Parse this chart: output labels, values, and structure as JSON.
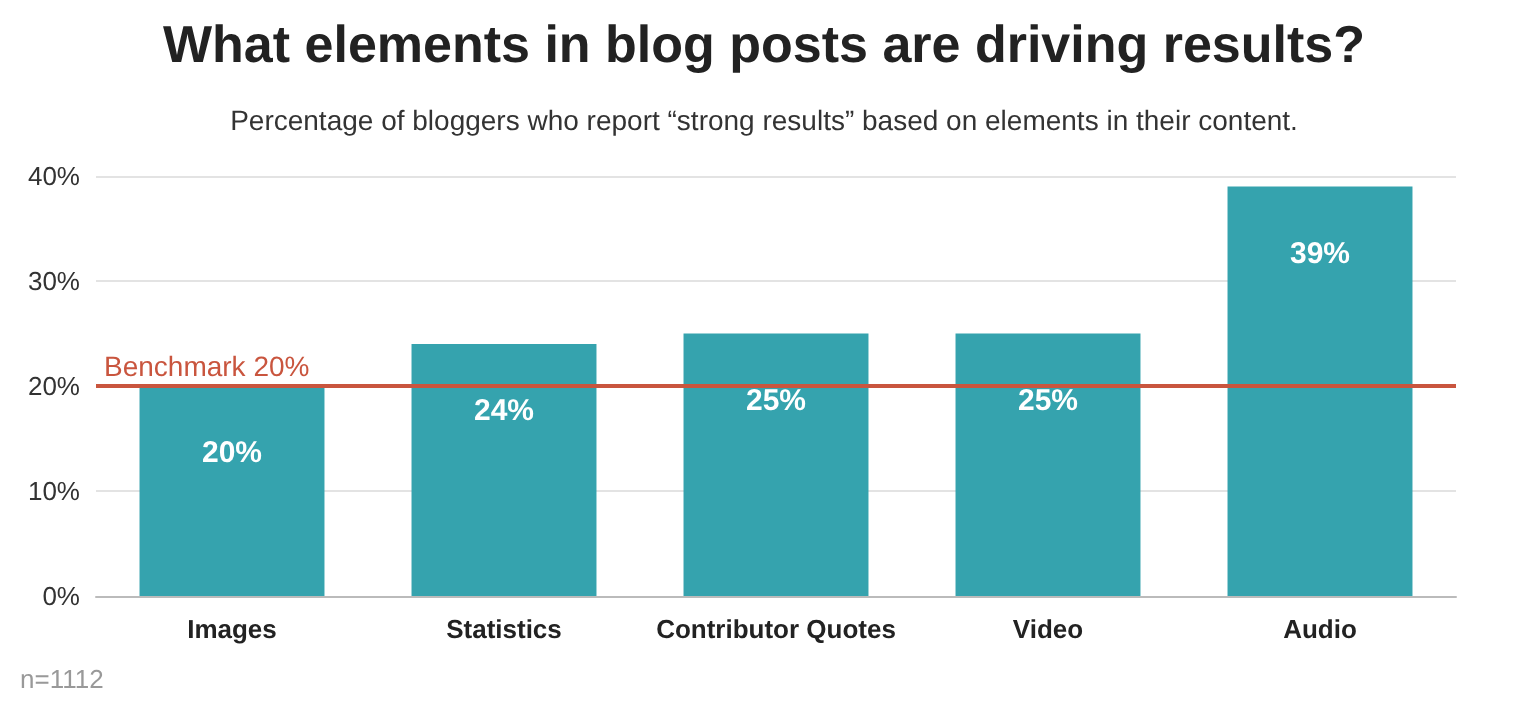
{
  "chart_data": {
    "type": "bar",
    "title": "What elements in blog posts are driving results?",
    "subtitle": "Percentage of bloggers who report “strong results” based on elements in their content.",
    "categories": [
      "Images",
      "Statistics",
      "Contributor Quotes",
      "Video",
      "Audio"
    ],
    "values": [
      20,
      24,
      25,
      25,
      39
    ],
    "color": "#35a3ae",
    "value_labels": [
      "20%",
      "24%",
      "25%",
      "25%",
      "39%"
    ],
    "ylim": [
      0,
      40
    ],
    "yticks": [
      {
        "value": 0,
        "label": "0%"
      },
      {
        "value": 10,
        "label": "10%"
      },
      {
        "value": 20,
        "label": "20%"
      },
      {
        "value": 30,
        "label": "30%"
      },
      {
        "value": 40,
        "label": "40%"
      }
    ],
    "grid": "y",
    "ref_lines": [
      {
        "axis": "y",
        "value": 20,
        "label": "Benchmark 20%",
        "color": "#c9553e"
      }
    ],
    "annotations": [
      "n=1112"
    ]
  }
}
